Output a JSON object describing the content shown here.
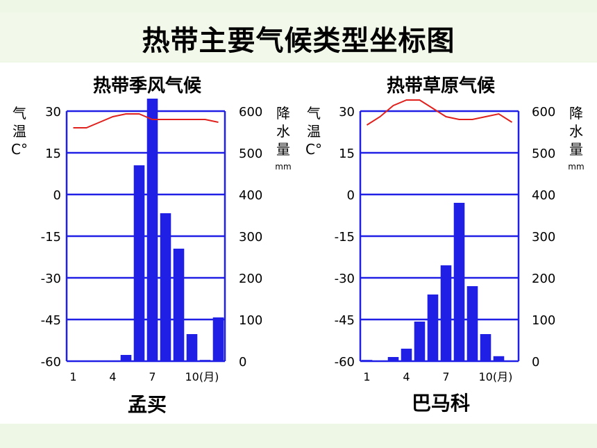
{
  "page_title": "热带主要气候类型坐标图",
  "colors": {
    "bar": "#1f1fe6",
    "temp_line": "#e0201c",
    "grid": "#1f1fe6"
  },
  "chart_data": [
    {
      "type": "bar",
      "title": "热带季风气候",
      "caption": "孟买",
      "left_axis_label": [
        "气",
        "温",
        "C°"
      ],
      "right_axis_label": [
        "降",
        "水",
        "量",
        "mm"
      ],
      "temp_ticks": [
        "30",
        "15",
        "0",
        "-15",
        "-30",
        "-45",
        "-60"
      ],
      "precip_ticks": [
        "600",
        "500",
        "400",
        "300",
        "200",
        "100",
        "0"
      ],
      "x_ticks": [
        "1",
        "4",
        "7",
        "10(月)"
      ],
      "x_tick_months": [
        1,
        4,
        7,
        10
      ],
      "precip_ylim": [
        0,
        600
      ],
      "temp_ylim": [
        -60,
        30
      ],
      "months": [
        1,
        2,
        3,
        4,
        5,
        6,
        7,
        8,
        9,
        10,
        11,
        12
      ],
      "precipitation": [
        0,
        0,
        0,
        0,
        15,
        470,
        630,
        355,
        270,
        65,
        3,
        105
      ],
      "temperature": [
        24,
        24,
        26,
        28,
        29,
        29,
        27,
        27,
        27,
        27,
        27,
        26
      ]
    },
    {
      "type": "bar",
      "title": "热带草原气候",
      "caption": "巴马科",
      "left_axis_label": [
        "气",
        "温",
        "C°"
      ],
      "right_axis_label": [
        "降",
        "水",
        "量",
        "mm"
      ],
      "temp_ticks": [
        "30",
        "15",
        "0",
        "-15",
        "-30",
        "-45",
        "-60"
      ],
      "precip_ticks": [
        "600",
        "500",
        "400",
        "300",
        "200",
        "100",
        "0"
      ],
      "x_ticks": [
        "1",
        "4",
        "7",
        "10(月)"
      ],
      "x_tick_months": [
        1,
        4,
        7,
        10
      ],
      "precip_ylim": [
        0,
        600
      ],
      "temp_ylim": [
        -60,
        30
      ],
      "months": [
        1,
        2,
        3,
        4,
        5,
        6,
        7,
        8,
        9,
        10,
        11,
        12
      ],
      "precipitation": [
        3,
        0,
        10,
        30,
        95,
        160,
        230,
        380,
        180,
        65,
        12,
        0
      ],
      "temperature": [
        25,
        28,
        32,
        34,
        34,
        31,
        28,
        27,
        27,
        28,
        29,
        26
      ]
    }
  ]
}
